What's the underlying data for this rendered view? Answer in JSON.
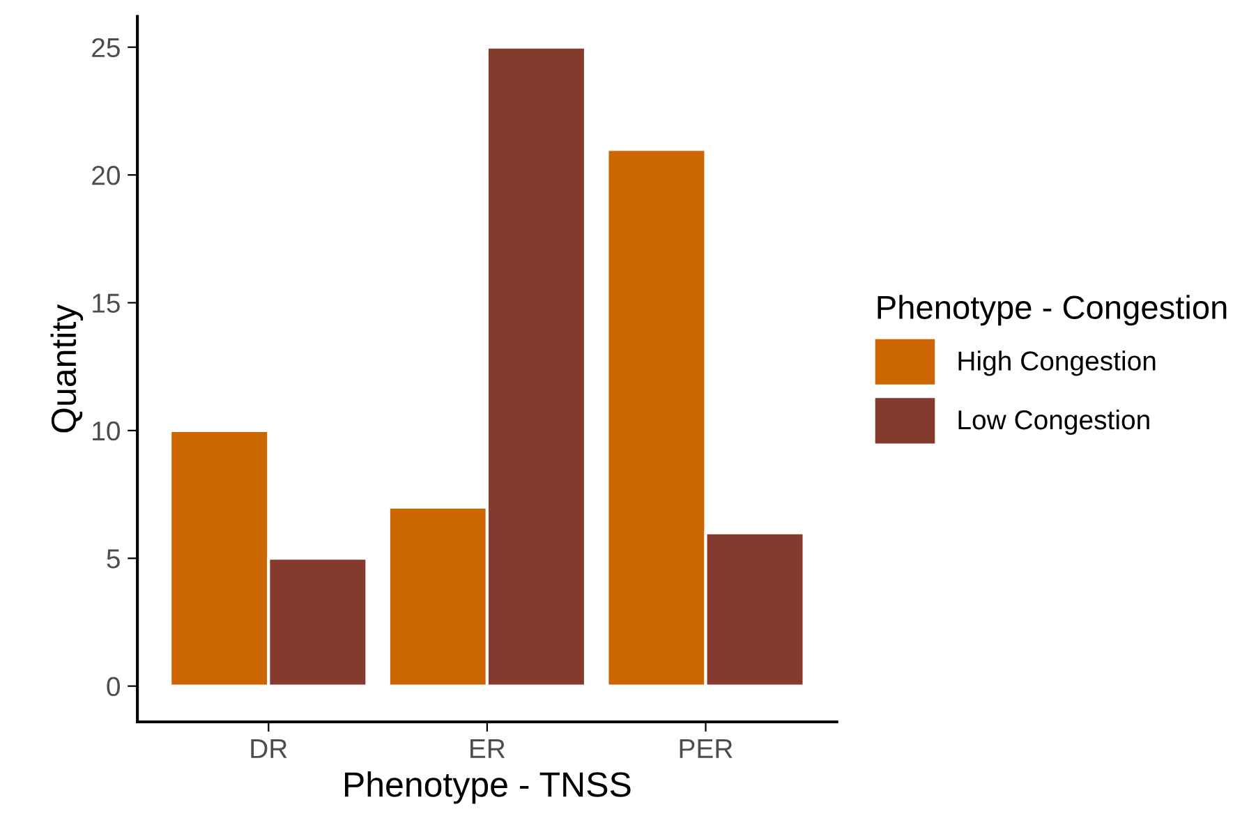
{
  "chart_data": {
    "type": "bar",
    "xlabel": "Phenotype - TNSS",
    "ylabel": "Quantity",
    "legend_title": "Phenotype - Congestion",
    "categories": [
      "DR",
      "ER",
      "PER"
    ],
    "series": [
      {
        "name": "High Congestion",
        "color": "#cc6600",
        "values": [
          10,
          7,
          21
        ]
      },
      {
        "name": "Low Congestion",
        "color": "#843a2c",
        "values": [
          5,
          25,
          6
        ]
      }
    ],
    "ylim": [
      -1.4,
      26.2
    ],
    "yticks": [
      0,
      5,
      10,
      15,
      20,
      25
    ],
    "grid": false,
    "legend": "right"
  }
}
